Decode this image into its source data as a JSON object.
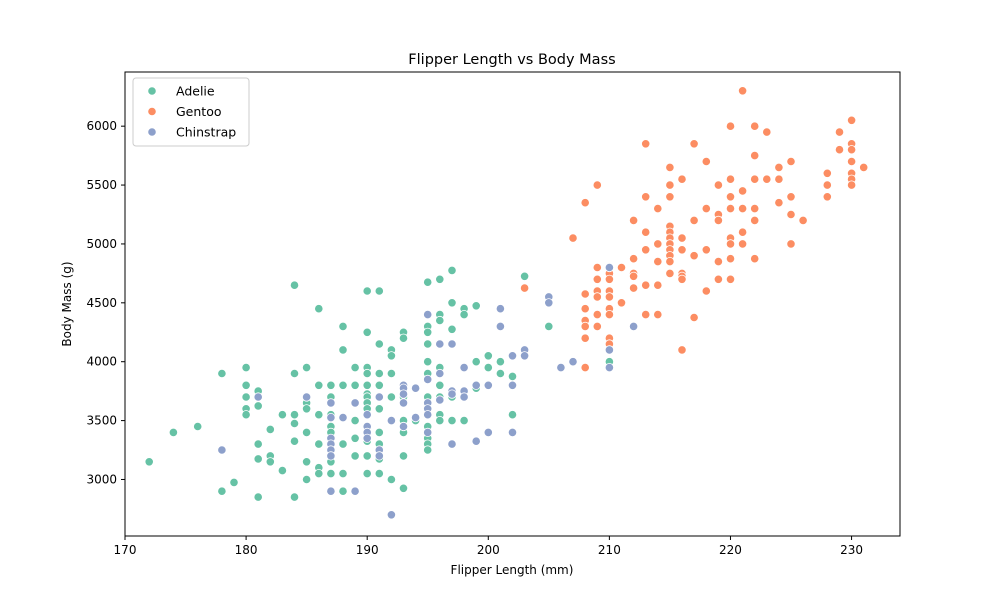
{
  "chart_data": {
    "type": "scatter",
    "title": "Flipper Length vs Body Mass",
    "xlabel": "Flipper Length (mm)",
    "ylabel": "Body Mass (g)",
    "xlim": [
      170,
      234
    ],
    "ylim": [
      2520,
      6460
    ],
    "xticks": [
      170,
      180,
      190,
      200,
      210,
      220,
      230
    ],
    "yticks": [
      3000,
      3500,
      4000,
      4500,
      5000,
      5500,
      6000
    ],
    "grid": false,
    "legend_position": "top-left",
    "series": [
      {
        "name": "Adelie",
        "color": "#66c2a5",
        "points": [
          [
            172,
            3150
          ],
          [
            174,
            3400
          ],
          [
            176,
            3450
          ],
          [
            178,
            3900
          ],
          [
            178,
            2900
          ],
          [
            179,
            2975
          ],
          [
            180,
            3950
          ],
          [
            180,
            3800
          ],
          [
            180,
            3700
          ],
          [
            180,
            3600
          ],
          [
            180,
            3550
          ],
          [
            181,
            3750
          ],
          [
            181,
            3625
          ],
          [
            181,
            3300
          ],
          [
            181,
            3175
          ],
          [
            181,
            2850
          ],
          [
            182,
            3200
          ],
          [
            182,
            3150
          ],
          [
            182,
            3425
          ],
          [
            183,
            3550
          ],
          [
            183,
            3075
          ],
          [
            184,
            4650
          ],
          [
            184,
            3900
          ],
          [
            184,
            3550
          ],
          [
            184,
            3475
          ],
          [
            184,
            3325
          ],
          [
            184,
            2850
          ],
          [
            185,
            3950
          ],
          [
            185,
            3650
          ],
          [
            185,
            3400
          ],
          [
            185,
            3150
          ],
          [
            185,
            3000
          ],
          [
            185,
            3600
          ],
          [
            186,
            4450
          ],
          [
            186,
            3800
          ],
          [
            186,
            3550
          ],
          [
            186,
            3300
          ],
          [
            186,
            3100
          ],
          [
            186,
            3050
          ],
          [
            187,
            3800
          ],
          [
            187,
            3700
          ],
          [
            187,
            3550
          ],
          [
            187,
            3450
          ],
          [
            187,
            3400
          ],
          [
            187,
            3250
          ],
          [
            187,
            3150
          ],
          [
            187,
            3050
          ],
          [
            188,
            4300
          ],
          [
            188,
            4100
          ],
          [
            188,
            3800
          ],
          [
            188,
            3300
          ],
          [
            188,
            3050
          ],
          [
            188,
            2900
          ],
          [
            189,
            3950
          ],
          [
            189,
            3800
          ],
          [
            189,
            3500
          ],
          [
            189,
            3350
          ],
          [
            189,
            3200
          ],
          [
            190,
            4600
          ],
          [
            190,
            4250
          ],
          [
            190,
            3950
          ],
          [
            190,
            3900
          ],
          [
            190,
            3800
          ],
          [
            190,
            3725
          ],
          [
            190,
            3700
          ],
          [
            190,
            3650
          ],
          [
            190,
            3600
          ],
          [
            190,
            3450
          ],
          [
            190,
            3325
          ],
          [
            190,
            3200
          ],
          [
            190,
            3050
          ],
          [
            191,
            4600
          ],
          [
            191,
            4150
          ],
          [
            191,
            3900
          ],
          [
            191,
            3800
          ],
          [
            191,
            3600
          ],
          [
            191,
            3400
          ],
          [
            191,
            3300
          ],
          [
            191,
            3175
          ],
          [
            191,
            3050
          ],
          [
            192,
            4100
          ],
          [
            192,
            4050
          ],
          [
            192,
            3900
          ],
          [
            192,
            3700
          ],
          [
            192,
            3500
          ],
          [
            192,
            3000
          ],
          [
            193,
            4250
          ],
          [
            193,
            4200
          ],
          [
            193,
            3800
          ],
          [
            193,
            3700
          ],
          [
            193,
            3500
          ],
          [
            193,
            3450
          ],
          [
            193,
            3400
          ],
          [
            193,
            3200
          ],
          [
            193,
            2925
          ],
          [
            194,
            3775
          ],
          [
            194,
            3500
          ],
          [
            195,
            4675
          ],
          [
            195,
            4300
          ],
          [
            195,
            4250
          ],
          [
            195,
            4150
          ],
          [
            195,
            4000
          ],
          [
            195,
            3900
          ],
          [
            195,
            3700
          ],
          [
            195,
            3550
          ],
          [
            195,
            3450
          ],
          [
            195,
            3350
          ],
          [
            195,
            3300
          ],
          [
            195,
            3250
          ],
          [
            196,
            4700
          ],
          [
            196,
            4400
          ],
          [
            196,
            4350
          ],
          [
            196,
            4150
          ],
          [
            196,
            3950
          ],
          [
            196,
            3800
          ],
          [
            196,
            3700
          ],
          [
            196,
            3550
          ],
          [
            196,
            3500
          ],
          [
            197,
            4775
          ],
          [
            197,
            4500
          ],
          [
            197,
            4275
          ],
          [
            197,
            4150
          ],
          [
            197,
            3700
          ],
          [
            197,
            3500
          ],
          [
            198,
            4450
          ],
          [
            198,
            4400
          ],
          [
            198,
            3950
          ],
          [
            198,
            3500
          ],
          [
            199,
            4475
          ],
          [
            199,
            4000
          ],
          [
            199,
            3775
          ],
          [
            200,
            4050
          ],
          [
            200,
            3950
          ],
          [
            201,
            4000
          ],
          [
            201,
            3900
          ],
          [
            202,
            3875
          ],
          [
            202,
            3550
          ],
          [
            203,
            4725
          ],
          [
            205,
            4300
          ],
          [
            210,
            4000
          ]
        ]
      },
      {
        "name": "Gentoo",
        "color": "#fc8d62",
        "points": [
          [
            203,
            4625
          ],
          [
            207,
            5050
          ],
          [
            208,
            5350
          ],
          [
            208,
            4575
          ],
          [
            208,
            4450
          ],
          [
            208,
            4350
          ],
          [
            208,
            4300
          ],
          [
            208,
            4200
          ],
          [
            208,
            3950
          ],
          [
            209,
            5500
          ],
          [
            209,
            4800
          ],
          [
            209,
            4700
          ],
          [
            209,
            4600
          ],
          [
            209,
            4550
          ],
          [
            209,
            4400
          ],
          [
            209,
            4300
          ],
          [
            210,
            4800
          ],
          [
            210,
            4750
          ],
          [
            210,
            4700
          ],
          [
            210,
            4600
          ],
          [
            210,
            4550
          ],
          [
            210,
            4450
          ],
          [
            210,
            4400
          ],
          [
            210,
            4200
          ],
          [
            210,
            4150
          ],
          [
            211,
            4800
          ],
          [
            211,
            4500
          ],
          [
            212,
            5200
          ],
          [
            212,
            4875
          ],
          [
            212,
            4750
          ],
          [
            212,
            4725
          ],
          [
            212,
            4625
          ],
          [
            213,
            5850
          ],
          [
            213,
            5400
          ],
          [
            213,
            5100
          ],
          [
            213,
            4950
          ],
          [
            213,
            4650
          ],
          [
            213,
            4400
          ],
          [
            214,
            5300
          ],
          [
            214,
            5000
          ],
          [
            214,
            4850
          ],
          [
            214,
            4650
          ],
          [
            214,
            4400
          ],
          [
            215,
            5650
          ],
          [
            215,
            5500
          ],
          [
            215,
            5400
          ],
          [
            215,
            5150
          ],
          [
            215,
            5100
          ],
          [
            215,
            5050
          ],
          [
            215,
            5000
          ],
          [
            215,
            4950
          ],
          [
            215,
            4900
          ],
          [
            215,
            4850
          ],
          [
            215,
            4750
          ],
          [
            216,
            5550
          ],
          [
            216,
            5050
          ],
          [
            216,
            4950
          ],
          [
            216,
            4750
          ],
          [
            216,
            4725
          ],
          [
            216,
            4700
          ],
          [
            216,
            4100
          ],
          [
            217,
            5850
          ],
          [
            217,
            5200
          ],
          [
            217,
            4900
          ],
          [
            217,
            4375
          ],
          [
            218,
            5700
          ],
          [
            218,
            5300
          ],
          [
            218,
            4950
          ],
          [
            218,
            4600
          ],
          [
            219,
            5500
          ],
          [
            219,
            5250
          ],
          [
            219,
            5200
          ],
          [
            219,
            4850
          ],
          [
            219,
            4700
          ],
          [
            220,
            6000
          ],
          [
            220,
            5550
          ],
          [
            220,
            5400
          ],
          [
            220,
            5300
          ],
          [
            220,
            5050
          ],
          [
            220,
            5000
          ],
          [
            220,
            4875
          ],
          [
            220,
            4700
          ],
          [
            221,
            6300
          ],
          [
            221,
            5450
          ],
          [
            221,
            5300
          ],
          [
            221,
            5100
          ],
          [
            221,
            5000
          ],
          [
            222,
            6000
          ],
          [
            222,
            5750
          ],
          [
            222,
            5550
          ],
          [
            222,
            5300
          ],
          [
            222,
            5200
          ],
          [
            222,
            4875
          ],
          [
            223,
            5950
          ],
          [
            223,
            5550
          ],
          [
            224,
            5650
          ],
          [
            224,
            5550
          ],
          [
            224,
            5350
          ],
          [
            225,
            5700
          ],
          [
            225,
            5400
          ],
          [
            225,
            5250
          ],
          [
            225,
            5000
          ],
          [
            226,
            5200
          ],
          [
            228,
            5600
          ],
          [
            228,
            5500
          ],
          [
            228,
            5400
          ],
          [
            229,
            5950
          ],
          [
            229,
            5800
          ],
          [
            230,
            6050
          ],
          [
            230,
            5850
          ],
          [
            230,
            5800
          ],
          [
            230,
            5700
          ],
          [
            230,
            5600
          ],
          [
            230,
            5550
          ],
          [
            230,
            5500
          ],
          [
            231,
            5650
          ]
        ]
      },
      {
        "name": "Chinstrap",
        "color": "#8da0cb",
        "points": [
          [
            178,
            3250
          ],
          [
            181,
            3700
          ],
          [
            185,
            3700
          ],
          [
            187,
            3650
          ],
          [
            187,
            3525
          ],
          [
            187,
            3350
          ],
          [
            187,
            3300
          ],
          [
            187,
            3250
          ],
          [
            187,
            3200
          ],
          [
            187,
            2900
          ],
          [
            188,
            3525
          ],
          [
            189,
            3650
          ],
          [
            189,
            2900
          ],
          [
            190,
            3550
          ],
          [
            190,
            3450
          ],
          [
            190,
            3400
          ],
          [
            190,
            3350
          ],
          [
            191,
            3700
          ],
          [
            191,
            3250
          ],
          [
            191,
            3200
          ],
          [
            192,
            3500
          ],
          [
            192,
            2700
          ],
          [
            193,
            3800
          ],
          [
            193,
            3775
          ],
          [
            193,
            3725
          ],
          [
            193,
            3650
          ],
          [
            193,
            3450
          ],
          [
            194,
            3775
          ],
          [
            194,
            3525
          ],
          [
            195,
            4400
          ],
          [
            195,
            3850
          ],
          [
            195,
            3650
          ],
          [
            195,
            3600
          ],
          [
            195,
            3550
          ],
          [
            195,
            3400
          ],
          [
            196,
            4150
          ],
          [
            196,
            3900
          ],
          [
            196,
            3675
          ],
          [
            197,
            4150
          ],
          [
            197,
            3750
          ],
          [
            197,
            3725
          ],
          [
            197,
            3300
          ],
          [
            198,
            3950
          ],
          [
            198,
            3750
          ],
          [
            198,
            3700
          ],
          [
            199,
            3800
          ],
          [
            199,
            3325
          ],
          [
            200,
            3800
          ],
          [
            200,
            3400
          ],
          [
            201,
            4450
          ],
          [
            201,
            4300
          ],
          [
            202,
            4050
          ],
          [
            202,
            3800
          ],
          [
            202,
            3400
          ],
          [
            203,
            4100
          ],
          [
            203,
            4050
          ],
          [
            205,
            4550
          ],
          [
            205,
            4500
          ],
          [
            206,
            3950
          ],
          [
            207,
            4000
          ],
          [
            210,
            4800
          ],
          [
            210,
            4100
          ],
          [
            210,
            3950
          ],
          [
            212,
            4300
          ]
        ]
      }
    ]
  }
}
